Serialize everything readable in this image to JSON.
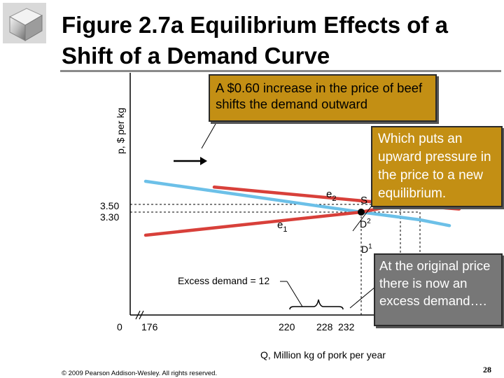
{
  "slide": {
    "title": "Figure 2.7a  Equilibrium Effects of a Shift of a Demand Curve",
    "footer": "© 2009 Pearson Addison-Wesley. All rights reserved.",
    "page_number": "28"
  },
  "callouts": {
    "demand_shift": "A $0.60 increase in the price of beef shifts the demand outward",
    "upward_pressure": "Which puts an upward pressure in the price to a new equilibrium.",
    "excess_demand": "At the original price there is now an excess demand…."
  },
  "colors": {
    "supply": "#d8403a",
    "demand1": "#6cc0e8",
    "demand2": "#d8403a",
    "callout_gold": "#c38f14",
    "callout_gray": "#777777"
  },
  "chart_data": {
    "type": "line",
    "xlabel": "Q, Million kg of pork per year",
    "ylabel": "p, $ per kg",
    "x_ticks": [
      "0",
      "176",
      "220",
      "228",
      "232"
    ],
    "y_ticks": [
      "3.50",
      "3.30"
    ],
    "series": [
      {
        "name": "S",
        "points": [
          [
            176,
            2.7
          ],
          [
            220,
            3.3
          ],
          [
            228,
            3.5
          ],
          [
            236,
            3.55
          ]
        ]
      },
      {
        "name": "D1",
        "points": [
          [
            176,
            4.1
          ],
          [
            220,
            3.3
          ],
          [
            232,
            3.1
          ],
          [
            238,
            2.95
          ]
        ]
      },
      {
        "name": "D2",
        "points": [
          [
            190,
            3.95
          ],
          [
            228,
            3.5
          ],
          [
            240,
            3.38
          ]
        ]
      }
    ],
    "equilibria": [
      {
        "label": "e",
        "subscript": "1",
        "q": 220,
        "p": 3.3
      },
      {
        "label": "e",
        "subscript": "2",
        "q": 228,
        "p": 3.5
      }
    ],
    "annotations": {
      "excess_demand": "Excess demand = 12"
    },
    "axis_break": true
  }
}
